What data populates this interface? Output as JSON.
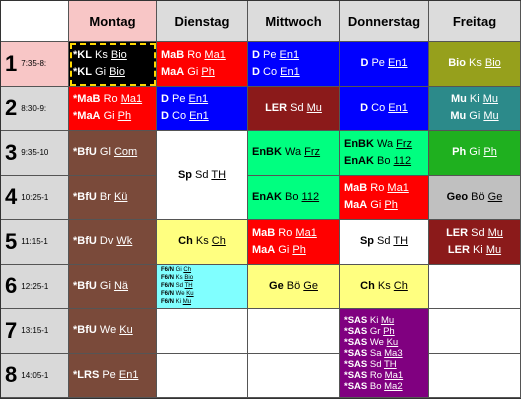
{
  "days": [
    "Montag",
    "Dienstag",
    "Mittwoch",
    "Donnerstag",
    "Freitag"
  ],
  "periods": [
    {
      "num": "1",
      "time": "7:35-8:"
    },
    {
      "num": "2",
      "time": "8:30-9:"
    },
    {
      "num": "3",
      "time": "9:35-10"
    },
    {
      "num": "4",
      "time": "10:25-1"
    },
    {
      "num": "5",
      "time": "11:15-1"
    },
    {
      "num": "6",
      "time": "12:25-1"
    },
    {
      "num": "7",
      "time": "13:15-1"
    },
    {
      "num": "8",
      "time": "14:05-1"
    }
  ],
  "lessons": {
    "mo1": [
      [
        "*KL",
        " Ks ",
        "Bio"
      ],
      [
        "*KL",
        " Gi ",
        "Bio"
      ]
    ],
    "mo2": [
      [
        "*MaB",
        " Ro ",
        "Ma1"
      ],
      [
        "*MaA",
        " Gi ",
        "Ph"
      ]
    ],
    "mo3": [
      [
        "*BfU",
        " Gl ",
        "Com"
      ]
    ],
    "mo4": [
      [
        "*BfU",
        " Br ",
        "Kü"
      ]
    ],
    "mo5": [
      [
        "*BfU",
        " Dv ",
        "Wk"
      ]
    ],
    "mo6": [
      [
        "*BfU",
        " Gi ",
        "Nä"
      ]
    ],
    "mo7": [
      [
        "*BfU",
        " We ",
        "Ku"
      ]
    ],
    "mo8": [
      [
        "*LRS",
        " Pe ",
        "En1"
      ]
    ],
    "di1": [
      [
        "MaB",
        " Ro ",
        "Ma1"
      ],
      [
        "MaA",
        " Gi ",
        "Ph"
      ]
    ],
    "di2": [
      [
        "D",
        " Pe ",
        "En1"
      ],
      [
        "D",
        " Co ",
        "En1"
      ]
    ],
    "di34": [
      [
        "Sp",
        " Sd ",
        "TH"
      ]
    ],
    "di5": [
      [
        "Ch",
        " Ks ",
        "Ch"
      ]
    ],
    "di6": [
      [
        "F6/N",
        " Gi ",
        "Ch"
      ],
      [
        "F6/N",
        " Ks ",
        "Bio"
      ],
      [
        "F6/N",
        " Sd ",
        "TH"
      ],
      [
        "F6/N",
        " We ",
        "Ku"
      ],
      [
        "F6/N",
        " Ki ",
        "Mu"
      ]
    ],
    "mi1": [
      [
        "D",
        " Pe ",
        "En1"
      ],
      [
        "D",
        " Co ",
        "En1"
      ]
    ],
    "mi2": [
      [
        "LER",
        " Sd ",
        "Mu"
      ]
    ],
    "mi3": [
      [
        "EnBK",
        " Wa ",
        "Frz"
      ]
    ],
    "mi4": [
      [
        "EnAK",
        " Bo ",
        "112"
      ]
    ],
    "mi5": [
      [
        "MaB",
        " Ro ",
        "Ma1"
      ],
      [
        "MaA",
        " Gi ",
        "Ph"
      ]
    ],
    "mi6": [
      [
        "Ge",
        " Bö ",
        "Ge"
      ]
    ],
    "do1": [
      [
        "D",
        " Pe ",
        "En1"
      ]
    ],
    "do2": [
      [
        "D",
        " Co ",
        "En1"
      ]
    ],
    "do3": [
      [
        "EnBK",
        " Wa ",
        "Frz"
      ],
      [
        "EnAK",
        " Bo ",
        "112"
      ]
    ],
    "do4": [
      [
        "MaB",
        " Ro ",
        "Ma1"
      ],
      [
        "MaA",
        " Gi ",
        "Ph"
      ]
    ],
    "do5": [
      [
        "Sp",
        " Sd ",
        "TH"
      ]
    ],
    "do6": [
      [
        "Ch",
        " Ks ",
        "Ch"
      ]
    ],
    "do78": [
      [
        "*SAS",
        " Ki ",
        "Mu"
      ],
      [
        "*SAS",
        " Gr ",
        "Ph"
      ],
      [
        "*SAS",
        " We ",
        "Ku"
      ],
      [
        "*SAS",
        " Sa ",
        "Ma3"
      ],
      [
        "*SAS",
        " Sd ",
        "TH"
      ],
      [
        "*SAS",
        " Ro ",
        "Ma1"
      ],
      [
        "*SAS",
        " Bo ",
        "Ma2"
      ]
    ],
    "fr1": [
      [
        "Bio",
        " Ks ",
        "Bio"
      ]
    ],
    "fr2": [
      [
        "Mu",
        " Ki ",
        "Mu"
      ],
      [
        "Mu",
        " Gi ",
        "Mu"
      ]
    ],
    "fr3": [
      [
        "Ph",
        " Gi ",
        "Ph"
      ]
    ],
    "fr4": [
      [
        "Geo",
        " Bö ",
        "Ge"
      ]
    ],
    "fr5": [
      [
        "LER",
        " Sd ",
        "Mu"
      ],
      [
        "LER",
        " Ki ",
        "Mu"
      ]
    ]
  }
}
